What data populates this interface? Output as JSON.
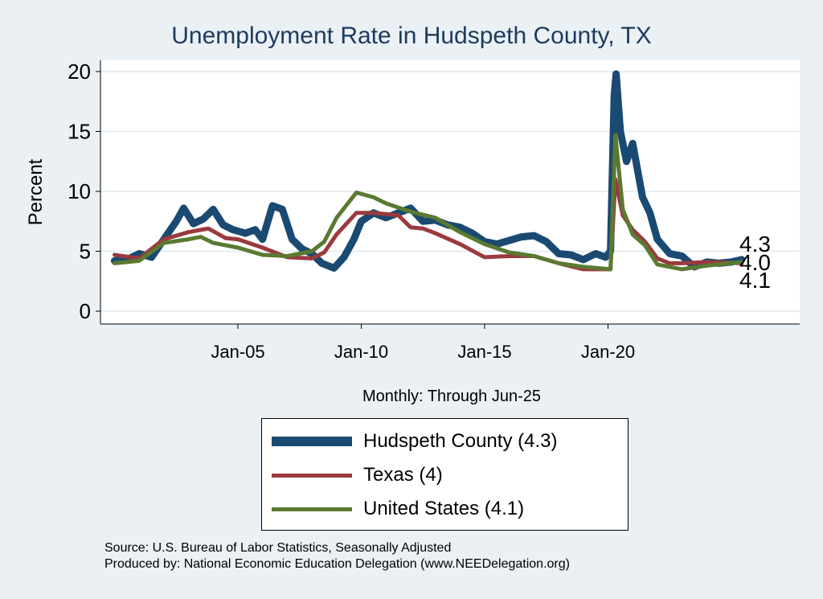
{
  "chart_data": {
    "type": "line",
    "title": "Unemployment Rate in Hudspeth  County, TX",
    "xlabel": "Monthly: Through Jun-25",
    "ylabel": "Percent",
    "ylim": [
      0,
      20
    ],
    "yticks": [
      0,
      5,
      10,
      15,
      20
    ],
    "xticks": [
      {
        "x": 2005,
        "label": "Jan-05"
      },
      {
        "x": 2010,
        "label": "Jan-10"
      },
      {
        "x": 2015,
        "label": "Jan-15"
      },
      {
        "x": 2020,
        "label": "Jan-20"
      }
    ],
    "xlim": [
      1999.4,
      2028
    ],
    "grid": true,
    "legend_position": "bottom",
    "series": [
      {
        "name": "Hudspeth  County (4.3)",
        "color": "#1a4a72",
        "end_label": "4.3",
        "x": [
          2000,
          2000.5,
          2001,
          2001.5,
          2002,
          2002.5,
          2002.8,
          2003.2,
          2003.6,
          2004,
          2004.4,
          2004.8,
          2005.3,
          2005.7,
          2006,
          2006.4,
          2006.8,
          2007.2,
          2007.6,
          2008,
          2008.4,
          2008.9,
          2009.3,
          2009.7,
          2010,
          2010.5,
          2011,
          2011.5,
          2012,
          2012.5,
          2013,
          2013.5,
          2014,
          2014.5,
          2015,
          2015.5,
          2016,
          2016.5,
          2017,
          2017.5,
          2018,
          2018.5,
          2019,
          2019.5,
          2019.9,
          2020.1,
          2020.25,
          2020.33,
          2020.5,
          2020.75,
          2021,
          2021.4,
          2021.7,
          2022,
          2022.5,
          2023,
          2023.5,
          2024,
          2024.5,
          2025,
          2025.42
        ],
        "values": [
          4.2,
          4.3,
          4.8,
          4.5,
          6.0,
          7.5,
          8.6,
          7.3,
          7.7,
          8.5,
          7.2,
          6.8,
          6.5,
          6.8,
          6.0,
          8.8,
          8.5,
          6.0,
          5.2,
          4.8,
          4.0,
          3.6,
          4.5,
          6.0,
          7.5,
          8.2,
          7.8,
          8.2,
          8.6,
          7.5,
          7.6,
          7.2,
          7.0,
          6.5,
          5.8,
          5.6,
          5.9,
          6.2,
          6.3,
          5.8,
          4.8,
          4.7,
          4.3,
          4.8,
          4.5,
          5.0,
          18,
          19.8,
          15,
          12.5,
          14,
          9.5,
          8.2,
          6.0,
          4.8,
          4.6,
          3.7,
          4.1,
          4.0,
          4.1,
          4.3
        ]
      },
      {
        "name": "Texas (4)",
        "color": "#9b3a3e",
        "end_label": "4.0",
        "x": [
          2000,
          2001,
          2002,
          2003,
          2003.8,
          2004.5,
          2005,
          2006,
          2007,
          2008,
          2008.5,
          2009,
          2009.8,
          2010.5,
          2011.5,
          2012,
          2012.5,
          2013,
          2014,
          2015,
          2016,
          2017,
          2018,
          2019,
          2020.1,
          2020.3,
          2020.6,
          2021,
          2021.5,
          2022,
          2022.5,
          2023,
          2024,
          2025.42
        ],
        "values": [
          4.7,
          4.4,
          6.0,
          6.6,
          6.9,
          6.1,
          6.0,
          5.3,
          4.5,
          4.4,
          4.9,
          6.4,
          8.2,
          8.2,
          8.0,
          7.0,
          6.9,
          6.5,
          5.6,
          4.5,
          4.6,
          4.6,
          4.0,
          3.5,
          3.5,
          11.0,
          8.0,
          6.8,
          5.8,
          4.4,
          4.0,
          4.0,
          4.1,
          4.0
        ]
      },
      {
        "name": "United States (4.1)",
        "color": "#5a7a32",
        "end_label": "4.1",
        "x": [
          2000,
          2001,
          2002,
          2003,
          2003.5,
          2004,
          2005,
          2006,
          2007,
          2008,
          2008.5,
          2009,
          2009.8,
          2010.5,
          2011,
          2012,
          2013,
          2014,
          2015,
          2016,
          2017,
          2018,
          2019,
          2020.1,
          2020.3,
          2020.6,
          2021,
          2021.5,
          2022,
          2023,
          2024,
          2025.42
        ],
        "values": [
          4.0,
          4.2,
          5.7,
          6.0,
          6.2,
          5.7,
          5.3,
          4.7,
          4.6,
          5.0,
          5.8,
          7.8,
          9.9,
          9.5,
          9.0,
          8.3,
          7.8,
          6.6,
          5.6,
          4.9,
          4.6,
          4.0,
          3.7,
          3.5,
          14.7,
          8.5,
          6.4,
          5.5,
          3.9,
          3.5,
          3.8,
          4.1
        ]
      }
    ]
  },
  "source_lines": [
    "Source: U.S. Bureau of Labor Statistics, Seasonally Adjusted",
    "Produced by: National Economic Education Delegation (www.NEEDelegation.org)"
  ]
}
